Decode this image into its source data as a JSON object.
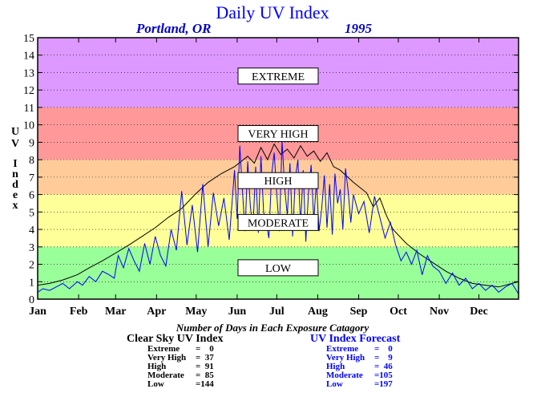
{
  "header": {
    "title": "Daily UV Index",
    "location": "Portland, OR",
    "year": "1995"
  },
  "chart_data": {
    "type": "line",
    "title": "Daily UV Index",
    "subtitle": "Portland, OR 1995",
    "xlabel": "",
    "ylabel": "UV Index",
    "ylim": [
      0,
      15
    ],
    "yticks": [
      0,
      1,
      2,
      3,
      4,
      5,
      6,
      7,
      8,
      9,
      10,
      11,
      12,
      13,
      14,
      15
    ],
    "xlim": [
      1,
      365
    ],
    "month_labels": [
      "Jan",
      "Feb",
      "Mar",
      "Apr",
      "May",
      "Jun",
      "Jul",
      "Aug",
      "Sep",
      "Oct",
      "Nov",
      "Dec"
    ],
    "month_starts": [
      1,
      32,
      60,
      91,
      121,
      152,
      182,
      213,
      244,
      274,
      305,
      335
    ],
    "grid": true,
    "bands": [
      {
        "label": "LOW",
        "from": 0,
        "to": 3,
        "color": "#99ff99"
      },
      {
        "label": "MODERATE",
        "from": 3,
        "to": 6,
        "color": "#ffff99"
      },
      {
        "label": "HIGH",
        "from": 6,
        "to": 8,
        "color": "#ffcc99"
      },
      {
        "label": "VERY HIGH",
        "from": 8,
        "to": 11,
        "color": "#ff9999"
      },
      {
        "label": "EXTREME",
        "from": 11,
        "to": 15,
        "color": "#dd99ff"
      }
    ],
    "band_label_values": {
      "LOW": 1.8,
      "MODERATE": 4.4,
      "HIGH": 6.8,
      "VERY HIGH": 9.5,
      "EXTREME": 12.8
    },
    "series": [
      {
        "color": "#000000",
        "x": [
          1,
          10,
          20,
          31,
          40,
          50,
          59,
          70,
          80,
          90,
          100,
          110,
          120,
          130,
          140,
          150,
          160,
          165,
          170,
          175,
          180,
          185,
          190,
          195,
          200,
          205,
          210,
          215,
          220,
          225,
          230,
          240,
          250,
          255,
          260,
          265,
          270,
          280,
          290,
          300,
          310,
          320,
          330,
          340,
          350,
          360,
          365
        ],
        "y": [
          0.8,
          0.9,
          1.1,
          1.4,
          1.8,
          2.2,
          2.6,
          3.1,
          3.6,
          4.1,
          4.7,
          5.2,
          6.0,
          6.7,
          7.2,
          7.6,
          8.2,
          7.8,
          8.7,
          8.0,
          8.9,
          8.3,
          8.6,
          8.1,
          8.8,
          8.2,
          8.5,
          7.9,
          8.4,
          7.6,
          7.4,
          6.7,
          6.1,
          5.3,
          5.8,
          4.8,
          4.0,
          3.2,
          2.6,
          2.1,
          1.6,
          1.2,
          0.9,
          0.8,
          0.7,
          0.9,
          1.0
        ]
      },
      {
        "color": "#0000ff",
        "x": [
          1,
          5,
          10,
          15,
          20,
          25,
          31,
          35,
          40,
          45,
          50,
          55,
          59,
          62,
          66,
          70,
          74,
          78,
          82,
          86,
          90,
          94,
          98,
          102,
          106,
          110,
          114,
          118,
          122,
          126,
          130,
          134,
          138,
          142,
          146,
          150,
          152,
          154,
          156,
          158,
          160,
          162,
          164,
          166,
          168,
          170,
          172,
          174,
          176,
          178,
          180,
          182,
          184,
          186,
          188,
          190,
          192,
          194,
          196,
          198,
          200,
          202,
          204,
          206,
          208,
          210,
          212,
          214,
          216,
          218,
          220,
          222,
          224,
          226,
          228,
          230,
          232,
          234,
          236,
          238,
          240,
          244,
          248,
          252,
          256,
          260,
          264,
          268,
          272,
          276,
          280,
          284,
          288,
          292,
          296,
          300,
          305,
          310,
          315,
          320,
          325,
          330,
          335,
          340,
          345,
          350,
          355,
          360,
          365
        ],
        "y": [
          0.4,
          0.6,
          0.5,
          0.7,
          0.9,
          0.6,
          1.0,
          0.8,
          1.3,
          1.0,
          1.6,
          1.4,
          1.2,
          2.5,
          1.8,
          2.9,
          2.2,
          1.6,
          3.2,
          2.0,
          3.6,
          2.5,
          1.9,
          4.0,
          2.8,
          6.2,
          3.1,
          5.4,
          2.7,
          6.6,
          3.0,
          6.1,
          4.2,
          5.8,
          3.4,
          7.4,
          4.6,
          8.8,
          6.2,
          3.9,
          7.9,
          5.3,
          4.1,
          7.6,
          3.8,
          8.2,
          5.0,
          4.4,
          3.5,
          7.1,
          8.4,
          6.0,
          3.9,
          9.1,
          6.4,
          4.8,
          7.8,
          3.6,
          6.9,
          8.0,
          4.2,
          7.4,
          3.3,
          6.1,
          7.7,
          4.5,
          6.8,
          3.9,
          5.2,
          7.1,
          4.1,
          6.6,
          3.7,
          7.2,
          5.5,
          6.3,
          4.0,
          7.5,
          6.2,
          4.4,
          6.0,
          4.9,
          5.6,
          3.8,
          5.9,
          4.7,
          3.5,
          4.4,
          3.1,
          2.2,
          2.7,
          2.0,
          2.8,
          1.4,
          2.5,
          1.9,
          1.6,
          0.9,
          1.5,
          0.8,
          1.2,
          0.6,
          0.9,
          0.5,
          0.8,
          0.4,
          0.7,
          0.9,
          0.3
        ]
      }
    ]
  },
  "stats": {
    "caption": "Number of Days in Each Exposure Catagory",
    "clear_sky": {
      "title": "Clear Sky UV Index",
      "rows": [
        {
          "label": "Extreme",
          "value": "=    0"
        },
        {
          "label": "Very High",
          "value": "=  37"
        },
        {
          "label": "High",
          "value": "=  91"
        },
        {
          "label": "Moderate",
          "value": "=  85"
        },
        {
          "label": "Low",
          "value": "=144"
        }
      ]
    },
    "forecast": {
      "title": "UV Index Forecast",
      "rows": [
        {
          "label": "Extreme",
          "value": "=    0"
        },
        {
          "label": "Very High",
          "value": "=    9"
        },
        {
          "label": "High",
          "value": "=  46"
        },
        {
          "label": "Moderate",
          "value": "=105"
        },
        {
          "label": "Low",
          "value": "=197"
        }
      ]
    }
  },
  "axis_letters": [
    "U",
    "V",
    "I",
    "n",
    "d",
    "e",
    "x"
  ]
}
